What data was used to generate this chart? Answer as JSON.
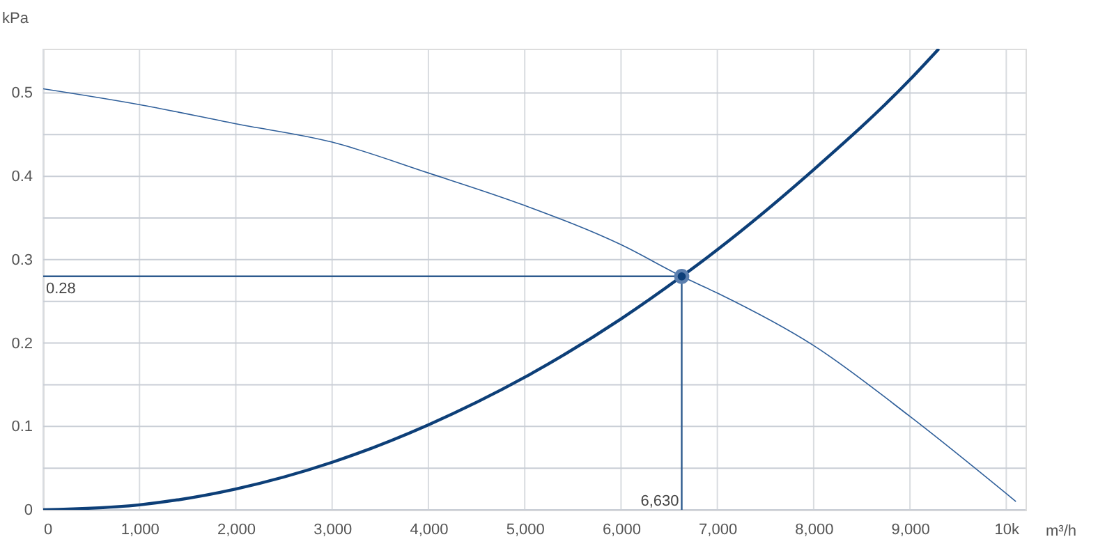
{
  "chart_data": {
    "type": "line",
    "xlabel": "m³/h",
    "ylabel": "kPa",
    "xlim": [
      0,
      10200
    ],
    "ylim": [
      0,
      0.553
    ],
    "xticks": [
      0,
      {
        "value": 1000,
        "label": "1,000"
      },
      {
        "value": 2000,
        "label": "2,000"
      },
      {
        "value": 3000,
        "label": "3,000"
      },
      {
        "value": 4000,
        "label": "4,000"
      },
      {
        "value": 5000,
        "label": "5,000"
      },
      {
        "value": 6000,
        "label": "6,000"
      },
      {
        "value": 7000,
        "label": "7,000"
      },
      {
        "value": 8000,
        "label": "8,000"
      },
      {
        "value": 9000,
        "label": "9,000"
      },
      {
        "value": 10000,
        "label": "10k"
      }
    ],
    "yticks": [
      0,
      {
        "value": 0.05,
        "label": null
      },
      0.1,
      {
        "value": 0.15,
        "label": null
      },
      0.2,
      {
        "value": 0.25,
        "label": null
      },
      0.3,
      {
        "value": 0.35,
        "label": null
      },
      0.4,
      {
        "value": 0.45,
        "label": null
      },
      0.5
    ],
    "grid": true,
    "series": [
      {
        "color": "#2f5f9a",
        "x": [
          0,
          1000,
          2000,
          3000,
          4000,
          5000,
          6000,
          6630,
          7000,
          8000,
          9000,
          10100
        ],
        "values": [
          0.505,
          0.486,
          0.463,
          0.441,
          0.404,
          0.365,
          0.318,
          0.28,
          0.26,
          0.197,
          0.112,
          0.01
        ]
      },
      {
        "color": "#0d3f78",
        "x": [
          0,
          1000,
          2000,
          3000,
          4000,
          5000,
          6000,
          6630,
          7000,
          8000,
          9000,
          9300
        ],
        "values": [
          0,
          0.006,
          0.025,
          0.057,
          0.102,
          0.159,
          0.229,
          0.28,
          0.312,
          0.408,
          0.516,
          0.553
        ]
      },
      {
        "color": "#2d5a8e",
        "x": [
          0,
          6630,
          6630
        ],
        "values": [
          0.28,
          0.28,
          0
        ]
      },
      {
        "type": "scatter",
        "color": "#0d3f78",
        "marker": "circle",
        "x": [
          6630
        ],
        "values": [
          0.28
        ]
      }
    ],
    "annotations": [
      {
        "text": "0.28",
        "x": 0,
        "y": 0.28
      },
      {
        "text": "6,630",
        "x": 6630,
        "y": 0
      }
    ]
  }
}
